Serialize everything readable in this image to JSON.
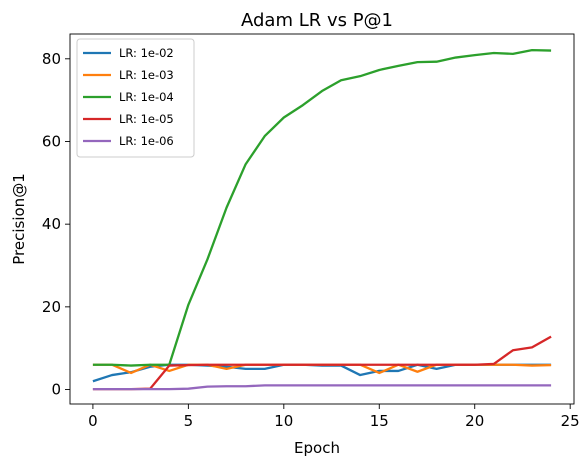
{
  "chart_data": {
    "type": "line",
    "title": "Adam LR vs P@1",
    "xlabel": "Epoch",
    "ylabel": "Precision@1",
    "xlim": [
      -1.2,
      25.2
    ],
    "ylim": [
      -3.5,
      86
    ],
    "xticks": [
      0,
      5,
      10,
      15,
      20,
      25
    ],
    "yticks": [
      0,
      20,
      40,
      60,
      80
    ],
    "grid": false,
    "legend_position": "top-left",
    "x": [
      0,
      1,
      2,
      3,
      4,
      5,
      6,
      7,
      8,
      9,
      10,
      11,
      12,
      13,
      14,
      15,
      16,
      17,
      18,
      19,
      20,
      21,
      22,
      23,
      24
    ],
    "series": [
      {
        "name": "LR: 1e-02",
        "color": "#1f77b4",
        "values": [
          2,
          3.5,
          4.2,
          5.5,
          6,
          6,
          5.8,
          5.5,
          5,
          5,
          6,
          6,
          5.8,
          5.8,
          3.5,
          4.5,
          4.5,
          6,
          5,
          6,
          6,
          6,
          6,
          6,
          6
        ]
      },
      {
        "name": "LR: 1e-03",
        "color": "#ff7f0e",
        "values": [
          6,
          6,
          4,
          6,
          4.5,
          6,
          6,
          5,
          6,
          6,
          6,
          6,
          6,
          6,
          6,
          4,
          6,
          4.3,
          6,
          6,
          6,
          6,
          6,
          5.8,
          5.9
        ]
      },
      {
        "name": "LR: 1e-04",
        "color": "#2ca02c",
        "values": [
          6,
          6,
          5.8,
          6,
          6,
          20.5,
          31.5,
          44,
          54.5,
          61.3,
          65.8,
          68.8,
          72.2,
          74.8,
          75.8,
          77.3,
          78.3,
          79.2,
          79.3,
          80.3,
          80.9,
          81.4,
          81.2,
          82.1,
          82
        ]
      },
      {
        "name": "LR: 1e-05",
        "color": "#d62728",
        "values": [
          0.1,
          0.1,
          0.1,
          0.2,
          5.8,
          5.9,
          6,
          6,
          6,
          6,
          6,
          6,
          6,
          6,
          6,
          6,
          6,
          6,
          6,
          6,
          6,
          6.2,
          9.5,
          10.2,
          12.8
        ]
      },
      {
        "name": "LR: 1e-06",
        "color": "#9467bd",
        "values": [
          0.1,
          0.1,
          0.1,
          0.1,
          0.1,
          0.2,
          0.7,
          0.8,
          0.8,
          1,
          1,
          1,
          1,
          1,
          1,
          1,
          1,
          1,
          1,
          1,
          1,
          1,
          1,
          1,
          1
        ]
      }
    ]
  }
}
